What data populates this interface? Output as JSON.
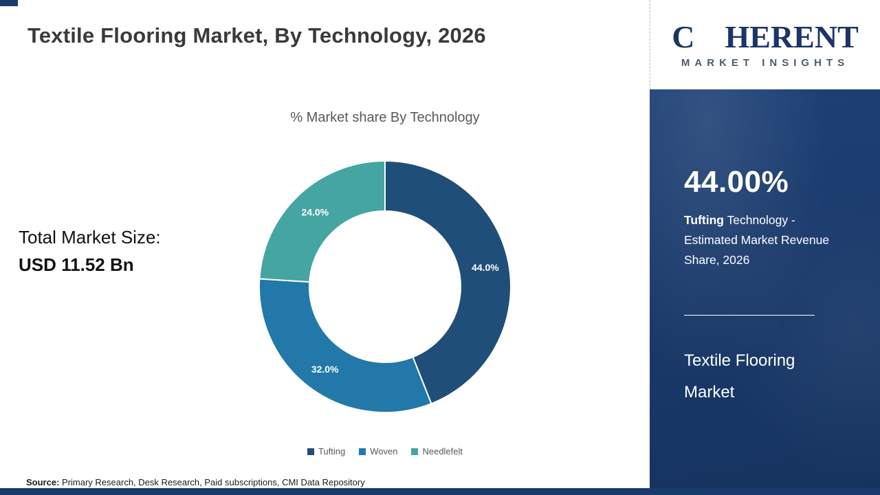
{
  "header": {
    "title": "Textile Flooring Market, By Technology, 2026"
  },
  "logo": {
    "first_letter": "C",
    "rest_letters": "HERENT",
    "subtitle": "MARKET INSIGHTS",
    "globe_icon": "dotted-globe-icon"
  },
  "chart_data": {
    "type": "pie",
    "donut": true,
    "title": "% Market share By Technology",
    "categories": [
      "Tufting",
      "Woven",
      "Needlefelt"
    ],
    "values": [
      44.0,
      32.0,
      24.0
    ],
    "labels": [
      "44.0%",
      "32.0%",
      "24.0%"
    ],
    "colors": [
      "#1f4e79",
      "#2278a8",
      "#45a5a3"
    ],
    "legend_position": "bottom",
    "start_angle": "top",
    "direction": "clockwise"
  },
  "left_panel": {
    "total_label": "Total Market Size:",
    "total_value": "USD 11.52 Bn"
  },
  "side_panel": {
    "stat_value": "44.00%",
    "stat_bold": "Tufting",
    "stat_rest": " Technology - Estimated Market Revenue Share, 2026",
    "footer_line1": "Textile Flooring",
    "footer_line2": "Market"
  },
  "source": {
    "label": "Source:",
    "text": " Primary Research, Desk Research, Paid subscriptions, CMI Data Repository"
  },
  "colors": {
    "panel_navy": "#1a3a6b",
    "title_gray": "#3a3a3a",
    "subtitle_gray": "#595959",
    "logo_navy": "#1b3566"
  }
}
